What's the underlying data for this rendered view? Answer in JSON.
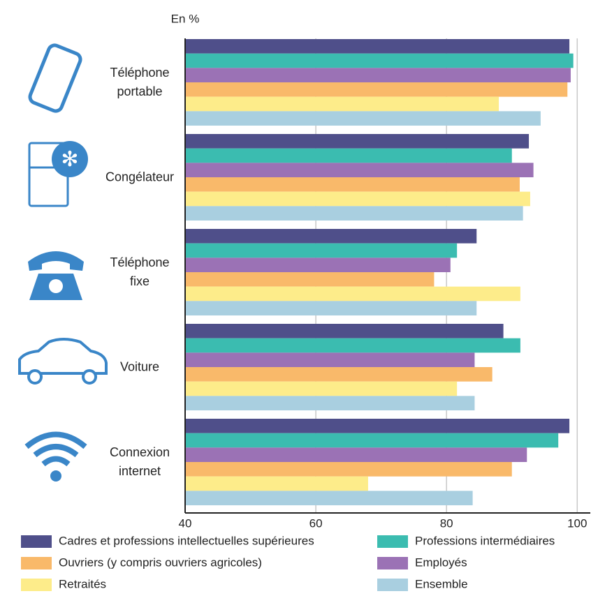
{
  "chart_data": {
    "type": "hbar",
    "unit_label": "En %",
    "categories": [
      "Téléphone\nportable",
      "Congélateur",
      "Téléphone\nfixe",
      "Voiture",
      "Connexion\ninternet"
    ],
    "series": [
      {
        "name": "Cadres et professions intellectuelles supérieures",
        "color": "#4f4f8a",
        "values": [
          98.8,
          92.6,
          84.6,
          88.7,
          98.8
        ]
      },
      {
        "name": "Professions intermédiaires",
        "color": "#3bbcb0",
        "values": [
          99.4,
          90,
          81.6,
          91.3,
          97.1
        ]
      },
      {
        "name": "Employés",
        "color": "#9b72b5",
        "values": [
          99,
          93.3,
          80.6,
          84.3,
          92.3
        ]
      },
      {
        "name": "Ouvriers (y compris ouvriers agricoles)",
        "color": "#f9b96a",
        "values": [
          98.5,
          91.2,
          78.1,
          87,
          90
        ]
      },
      {
        "name": "Retraités",
        "color": "#fdec8a",
        "values": [
          88,
          92.8,
          91.3,
          81.6,
          68
        ]
      },
      {
        "name": "Ensemble",
        "color": "#a9cfe0",
        "values": [
          94.4,
          91.7,
          84.6,
          84.3,
          84
        ]
      }
    ],
    "xlim": [
      40,
      102
    ],
    "xticks": [
      40,
      60,
      80,
      100
    ],
    "grid": true
  }
}
